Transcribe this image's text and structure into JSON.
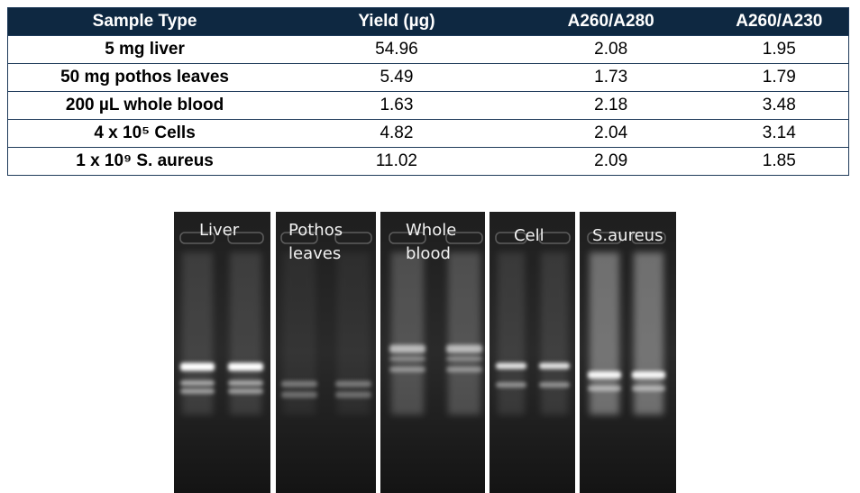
{
  "table": {
    "header": [
      "Sample Type",
      "Yield (µg)",
      "A260/A280",
      "A260/A230"
    ],
    "rows": [
      [
        "5 mg liver",
        "54.96",
        "2.08",
        "1.95"
      ],
      [
        "50 mg pothos leaves",
        "5.49",
        "1.73",
        "1.79"
      ],
      [
        "200 µL whole blood",
        "1.63",
        "2.18",
        "3.48"
      ],
      [
        "4 x 10⁵ Cells",
        "4.82",
        "2.04",
        "3.14"
      ],
      [
        "1 x 10⁹ S. aureus",
        "11.02",
        "2.09",
        "1.85"
      ]
    ]
  },
  "gel": {
    "panels": [
      [
        "Liver"
      ],
      [
        "Pothos",
        "leaves"
      ],
      [
        "Whole",
        "blood"
      ],
      [
        "Cell"
      ],
      [
        "S.aureus"
      ]
    ]
  }
}
